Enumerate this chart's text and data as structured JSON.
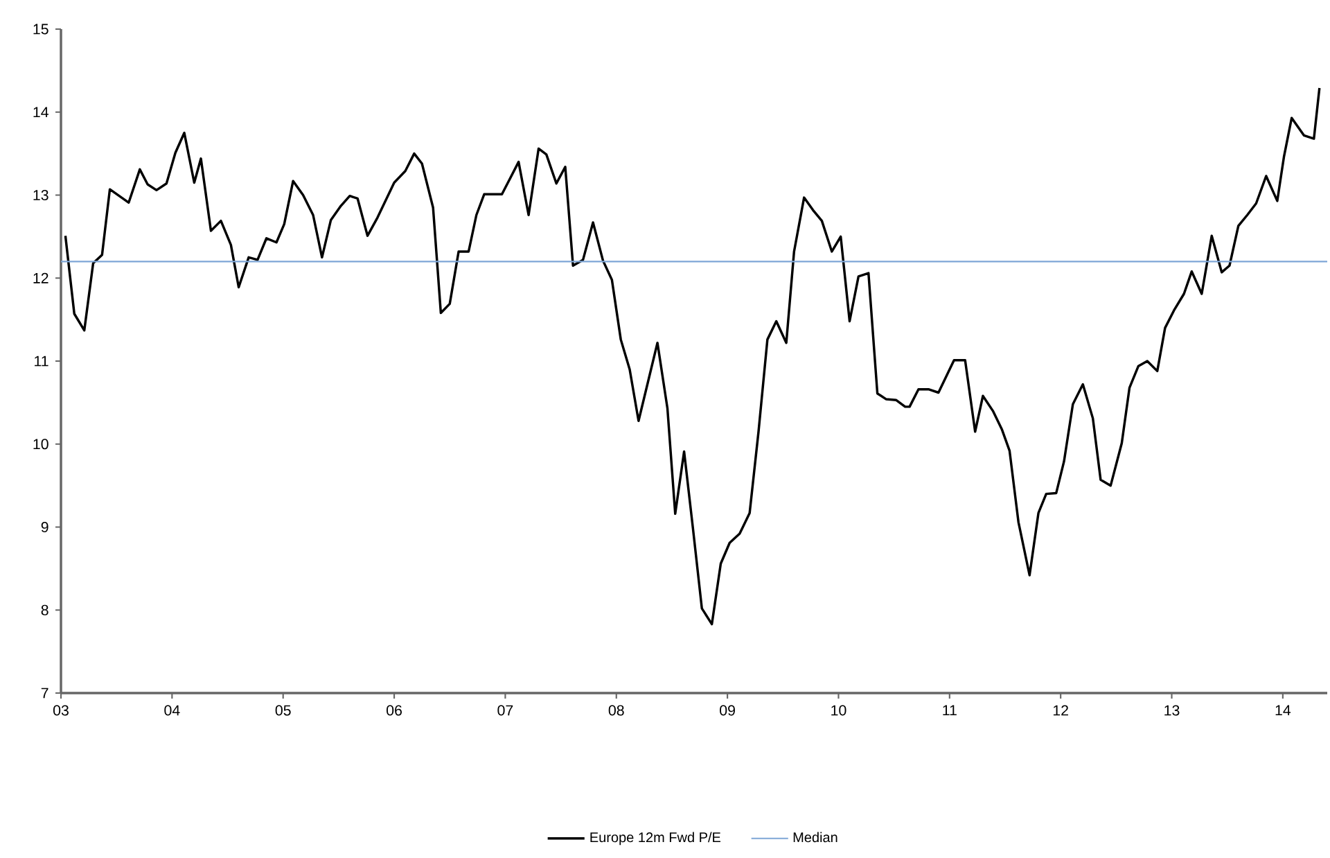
{
  "chart_data": {
    "type": "line",
    "xlim": [
      2003,
      2014.4
    ],
    "ylim": [
      7,
      15
    ],
    "xticks": [
      {
        "value": 2003,
        "label": "03"
      },
      {
        "value": 2004,
        "label": "04"
      },
      {
        "value": 2005,
        "label": "05"
      },
      {
        "value": 2006,
        "label": "06"
      },
      {
        "value": 2007,
        "label": "07"
      },
      {
        "value": 2008,
        "label": "08"
      },
      {
        "value": 2009,
        "label": "09"
      },
      {
        "value": 2010,
        "label": "10"
      },
      {
        "value": 2011,
        "label": "11"
      },
      {
        "value": 2012,
        "label": "12"
      },
      {
        "value": 2013,
        "label": "13"
      },
      {
        "value": 2014,
        "label": "14"
      }
    ],
    "yticks": [
      7,
      8,
      9,
      10,
      11,
      12,
      13,
      14,
      15
    ],
    "grid": false,
    "legend": "bottom",
    "marker": "none",
    "line_style": "solid",
    "series": [
      {
        "name": "Europe 12m Fwd P/E",
        "color": "#000000",
        "x": [
          2003.04,
          2003.12,
          2003.21,
          2003.29,
          2003.37,
          2003.44,
          2003.61,
          2003.71,
          2003.78,
          2003.86,
          2003.95,
          2004.03,
          2004.11,
          2004.2,
          2004.26,
          2004.35,
          2004.44,
          2004.53,
          2004.6,
          2004.69,
          2004.77,
          2004.85,
          2004.94,
          2005.01,
          2005.09,
          2005.18,
          2005.27,
          2005.35,
          2005.43,
          2005.52,
          2005.6,
          2005.67,
          2005.76,
          2005.85,
          2006.0,
          2006.1,
          2006.18,
          2006.25,
          2006.35,
          2006.42,
          2006.5,
          2006.58,
          2006.67,
          2006.74,
          2006.81,
          2006.87,
          2006.97,
          2007.12,
          2007.21,
          2007.3,
          2007.37,
          2007.46,
          2007.54,
          2007.61,
          2007.7,
          2007.79,
          2007.88,
          2007.96,
          2008.04,
          2008.12,
          2008.2,
          2008.37,
          2008.46,
          2008.53,
          2008.61,
          2008.69,
          2008.77,
          2008.86,
          2008.94,
          2009.02,
          2009.11,
          2009.2,
          2009.28,
          2009.36,
          2009.44,
          2009.53,
          2009.6,
          2009.69,
          2009.77,
          2009.85,
          2009.94,
          2010.02,
          2010.1,
          2010.18,
          2010.27,
          2010.35,
          2010.43,
          2010.52,
          2010.6,
          2010.64,
          2010.72,
          2010.81,
          2010.9,
          2011.04,
          2011.14,
          2011.23,
          2011.3,
          2011.39,
          2011.47,
          2011.54,
          2011.62,
          2011.72,
          2011.8,
          2011.87,
          2011.96,
          2012.03,
          2012.11,
          2012.2,
          2012.29,
          2012.36,
          2012.45,
          2012.55,
          2012.62,
          2012.7,
          2012.78,
          2012.87,
          2012.94,
          2013.02,
          2013.11,
          2013.18,
          2013.27,
          2013.36,
          2013.45,
          2013.52,
          2013.6,
          2013.68,
          2013.76,
          2013.85,
          2013.95,
          2014.01,
          2014.08,
          2014.19,
          2014.28,
          2014.33
        ],
        "values": [
          12.51,
          11.57,
          11.37,
          12.18,
          12.28,
          13.07,
          12.91,
          13.31,
          13.13,
          13.06,
          13.14,
          13.51,
          13.75,
          13.15,
          13.44,
          12.57,
          12.69,
          12.4,
          11.89,
          12.25,
          12.22,
          12.48,
          12.43,
          12.65,
          13.17,
          13.0,
          12.76,
          12.25,
          12.7,
          12.87,
          12.99,
          12.96,
          12.51,
          12.73,
          13.15,
          13.29,
          13.5,
          13.38,
          12.85,
          11.58,
          11.69,
          12.32,
          12.32,
          12.76,
          13.01,
          13.01,
          13.01,
          13.4,
          12.76,
          13.56,
          13.49,
          13.14,
          13.34,
          12.15,
          12.22,
          12.67,
          12.21,
          11.98,
          11.26,
          10.9,
          10.28,
          11.22,
          10.43,
          9.16,
          9.91,
          8.98,
          8.02,
          7.83,
          8.56,
          8.81,
          8.92,
          9.17,
          10.15,
          11.26,
          11.48,
          11.22,
          12.32,
          12.97,
          12.82,
          12.69,
          12.32,
          12.5,
          11.48,
          12.02,
          12.06,
          10.61,
          10.54,
          10.53,
          10.45,
          10.45,
          10.66,
          10.66,
          10.62,
          11.01,
          11.01,
          10.15,
          10.58,
          10.4,
          10.18,
          9.92,
          9.06,
          8.42,
          9.17,
          9.4,
          9.41,
          9.79,
          10.48,
          10.72,
          10.31,
          9.57,
          9.5,
          10.01,
          10.68,
          10.94,
          11.0,
          10.88,
          11.4,
          11.61,
          11.81,
          12.08,
          11.81,
          12.51,
          12.07,
          12.15,
          12.63,
          12.76,
          12.9,
          13.23,
          12.93,
          13.46,
          13.93,
          13.72,
          13.68,
          14.29
        ]
      },
      {
        "name": "Median",
        "color": "#7ea6d6",
        "x": [
          2003,
          2014.4
        ],
        "values": [
          12.2,
          12.2
        ]
      }
    ]
  }
}
